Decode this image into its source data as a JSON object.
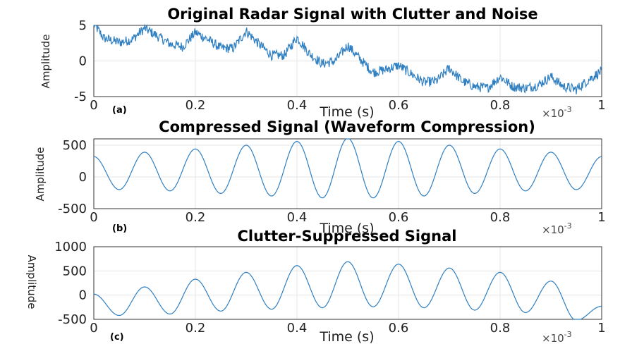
{
  "chart_data": [
    {
      "type": "line",
      "panel_label": "(a)",
      "title": "Original Radar Signal with Clutter and Noise",
      "xlabel": "Time (s)",
      "ylabel": "Amplitude",
      "x_multiplier": "×10",
      "x_multiplier_exp": "-3",
      "xlim": [
        0,
        1
      ],
      "ylim": [
        -5,
        5
      ],
      "xticks": [
        "0",
        "0.2",
        "0.4",
        "0.6",
        "0.8",
        "1"
      ],
      "yticks": [
        {
          "v": 5,
          "t": "5"
        },
        {
          "v": 0,
          "t": "0"
        },
        {
          "v": -5,
          "t": "-5"
        }
      ],
      "grid": true,
      "color": "#2f7fc1",
      "series": [
        {
          "x": [
            0,
            0.02,
            0.05,
            0.075,
            0.1,
            0.125,
            0.15,
            0.175,
            0.2,
            0.225,
            0.25,
            0.275,
            0.3,
            0.325,
            0.35,
            0.375,
            0.4,
            0.425,
            0.45,
            0.475,
            0.5,
            0.525,
            0.55,
            0.575,
            0.6,
            0.625,
            0.65,
            0.675,
            0.7,
            0.725,
            0.75,
            0.775,
            0.8,
            0.825,
            0.85,
            0.875,
            0.9,
            0.925,
            0.95,
            0.975,
            1.0
          ],
          "y": [
            5.2,
            3.2,
            2.6,
            3.0,
            4.6,
            3.5,
            2.4,
            2.0,
            4.0,
            3.0,
            1.8,
            1.8,
            4.2,
            2.4,
            0.8,
            0.8,
            3.3,
            1.0,
            -0.4,
            0.0,
            2.2,
            0.2,
            -1.6,
            -1.2,
            -0.6,
            -1.8,
            -3.0,
            -2.8,
            -1.0,
            -2.8,
            -3.6,
            -3.8,
            -2.2,
            -3.6,
            -3.8,
            -3.4,
            -2.2,
            -3.6,
            -4.0,
            -2.6,
            -1.4
          ]
        }
      ]
    },
    {
      "type": "line",
      "panel_label": "(b)",
      "title": "Compressed Signal (Waveform Compression)",
      "xlabel": "Time (s)",
      "ylabel": "Amplitude",
      "x_multiplier": "×10",
      "x_multiplier_exp": "-3",
      "xlim": [
        0,
        1
      ],
      "ylim": [
        -500,
        600
      ],
      "xticks": [
        "0",
        "0.2",
        "0.4",
        "0.6",
        "0.8",
        "1"
      ],
      "yticks": [
        {
          "v": 500,
          "t": "500"
        },
        {
          "v": 0,
          "t": "0"
        },
        {
          "v": -500,
          "t": "-500"
        }
      ],
      "grid": true,
      "color": "#2f7fc1",
      "series": [
        {
          "period": 0.1,
          "peaks": [
            320,
            390,
            440,
            500,
            560,
            610,
            560,
            500,
            440,
            390,
            320
          ],
          "troughs": [
            -200,
            -220,
            -260,
            -300,
            -330,
            -330,
            -300,
            -260,
            -220,
            -200
          ]
        }
      ]
    },
    {
      "type": "line",
      "panel_label": "(c)",
      "title": "Clutter-Suppressed Signal",
      "xlabel": "Time (s)",
      "ylabel": "Amplitude",
      "x_multiplier": "×10",
      "x_multiplier_exp": "-3",
      "xlim": [
        0,
        1
      ],
      "ylim": [
        -500,
        1000
      ],
      "xticks": [
        "0",
        "0.2",
        "0.4",
        "0.6",
        "0.8",
        "1"
      ],
      "yticks": [
        {
          "v": 1000,
          "t": "1000"
        },
        {
          "v": 500,
          "t": "500"
        },
        {
          "v": 0,
          "t": "0"
        },
        {
          "v": -500,
          "t": "-500"
        }
      ],
      "grid": true,
      "color": "#2f7fc1",
      "series": [
        {
          "period": 0.1,
          "peaks": [
            20,
            170,
            330,
            470,
            610,
            690,
            640,
            560,
            470,
            290,
            -230
          ],
          "troughs": [
            -420,
            -390,
            -330,
            -290,
            -260,
            -240,
            -260,
            -310,
            -360,
            -520
          ]
        }
      ]
    }
  ]
}
